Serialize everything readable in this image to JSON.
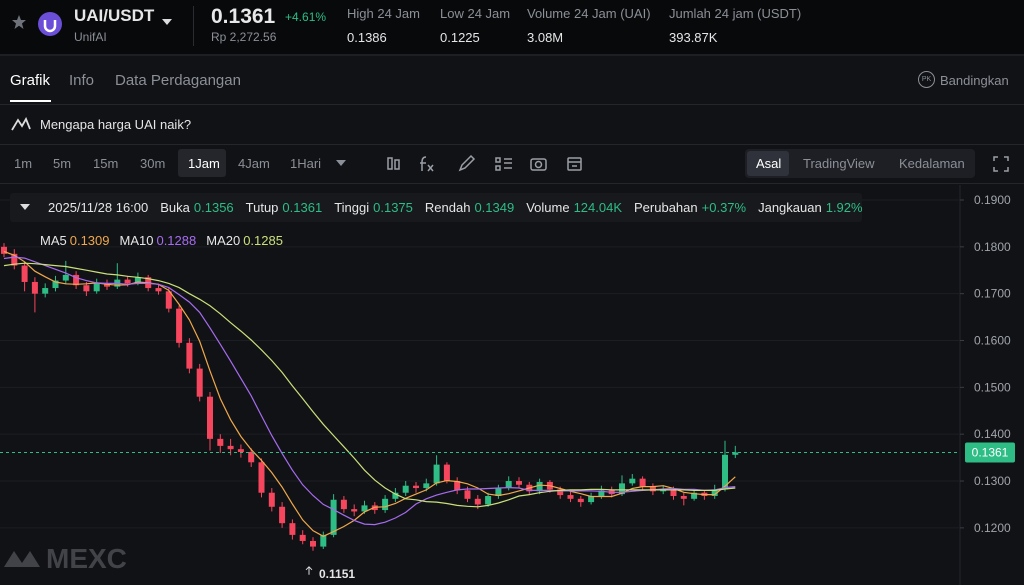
{
  "header": {
    "pair": "UAI/USDT",
    "name": "UnifAI",
    "price": "0.1361",
    "change": "+4.61%",
    "fiat": "Rp 2,272.56",
    "stats": [
      {
        "label": "High 24 Jam",
        "value": "0.1386"
      },
      {
        "label": "Low 24 Jam",
        "value": "0.1225"
      },
      {
        "label": "Volume 24 Jam (UAI)",
        "value": "3.08M"
      },
      {
        "label": "Jumlah 24 jam (USDT)",
        "value": "393.87K"
      }
    ]
  },
  "tabs": [
    "Grafik",
    "Info",
    "Data Perdagangan"
  ],
  "compare_badge": "PK",
  "compare": "Bandingkan",
  "banner": "Mengapa harga UAI naik?",
  "intervals": [
    "1m",
    "5m",
    "15m",
    "30m",
    "1Jam",
    "4Jam",
    "1Hari"
  ],
  "views": [
    "Asal",
    "TradingView",
    "Kedalaman"
  ],
  "info_bar": {
    "date": "2025/11/28 16:00",
    "open_label": "Buka",
    "close_label": "Tutup",
    "high_label": "Tinggi",
    "low_label": "Rendah",
    "volume_label": "Volume",
    "volume": "124.04K",
    "change_label": "Perubahan",
    "change": "+0.37%",
    "range_label": "Jangkauan",
    "range": "1.92%"
  },
  "watermark": "MEXC",
  "chart_data": {
    "type": "candlestick",
    "up_color": "#2dbd85",
    "down_color": "#f6465d",
    "grid": true,
    "ylim": [
      0.1078,
      0.1932
    ],
    "yticks": [
      {
        "value": 0.12,
        "label": "0.1200"
      },
      {
        "value": 0.13,
        "label": "0.1300"
      },
      {
        "value": 0.14,
        "label": "0.1400"
      },
      {
        "value": 0.15,
        "label": "0.1500"
      },
      {
        "value": 0.16,
        "label": "0.1600"
      },
      {
        "value": 0.17,
        "label": "0.1700"
      },
      {
        "value": 0.18,
        "label": "0.1800"
      },
      {
        "value": 0.19,
        "label": "0.1900"
      }
    ],
    "open": [
      0.18,
      0.1785,
      0.176,
      0.1725,
      0.17,
      0.1712,
      0.1728,
      0.174,
      0.1718,
      0.1705,
      0.1722,
      0.1715,
      0.173,
      0.1722,
      0.1735,
      0.1712,
      0.1705,
      0.1668,
      0.1595,
      0.154,
      0.148,
      0.139,
      0.1375,
      0.1368,
      0.1362,
      0.134,
      0.1275,
      0.1245,
      0.121,
      0.1185,
      0.1172,
      0.116,
      0.1185,
      0.126,
      0.124,
      0.1235,
      0.1248,
      0.1238,
      0.1262,
      0.1275,
      0.129,
      0.1285,
      0.1295,
      0.1335,
      0.13,
      0.128,
      0.1262,
      0.125,
      0.1268,
      0.1285,
      0.13,
      0.1292,
      0.1278,
      0.1298,
      0.1282,
      0.127,
      0.1262,
      0.1255,
      0.1268,
      0.128,
      0.1272,
      0.1295,
      0.1305,
      0.1288,
      0.1278,
      0.1282,
      0.1268,
      0.1262,
      0.1275,
      0.1268,
      0.1282,
      0.1356
    ],
    "high": [
      0.1808,
      0.1795,
      0.1768,
      0.1735,
      0.1722,
      0.1738,
      0.177,
      0.1748,
      0.1725,
      0.1732,
      0.173,
      0.1765,
      0.1738,
      0.1745,
      0.174,
      0.172,
      0.1712,
      0.1675,
      0.1605,
      0.155,
      0.149,
      0.14,
      0.139,
      0.1378,
      0.137,
      0.1348,
      0.1285,
      0.1255,
      0.1218,
      0.1195,
      0.118,
      0.1192,
      0.1272,
      0.1268,
      0.125,
      0.1258,
      0.1255,
      0.127,
      0.1285,
      0.13,
      0.1298,
      0.1305,
      0.1355,
      0.134,
      0.1308,
      0.1288,
      0.127,
      0.1275,
      0.1292,
      0.131,
      0.1308,
      0.1298,
      0.1305,
      0.1302,
      0.1288,
      0.1278,
      0.1268,
      0.1275,
      0.129,
      0.1288,
      0.1312,
      0.1315,
      0.131,
      0.1295,
      0.129,
      0.1288,
      0.1275,
      0.1282,
      0.128,
      0.1292,
      0.1386,
      0.1375
    ],
    "low": [
      0.1778,
      0.1752,
      0.1705,
      0.166,
      0.1692,
      0.1705,
      0.172,
      0.171,
      0.1695,
      0.17,
      0.1708,
      0.171,
      0.1715,
      0.1718,
      0.1705,
      0.1698,
      0.166,
      0.1585,
      0.153,
      0.147,
      0.1365,
      0.136,
      0.1355,
      0.135,
      0.133,
      0.1265,
      0.1235,
      0.12,
      0.1175,
      0.1165,
      0.1151,
      0.1155,
      0.118,
      0.1232,
      0.1225,
      0.123,
      0.123,
      0.1232,
      0.1255,
      0.1268,
      0.1275,
      0.1278,
      0.129,
      0.1295,
      0.1272,
      0.1255,
      0.124,
      0.1245,
      0.1262,
      0.128,
      0.1285,
      0.127,
      0.1272,
      0.1275,
      0.1262,
      0.1255,
      0.1245,
      0.125,
      0.1262,
      0.1265,
      0.1268,
      0.129,
      0.1282,
      0.127,
      0.1272,
      0.126,
      0.1248,
      0.1258,
      0.126,
      0.1262,
      0.1278,
      0.1349
    ],
    "close": [
      0.1785,
      0.176,
      0.1725,
      0.17,
      0.1712,
      0.1728,
      0.174,
      0.1718,
      0.1705,
      0.1722,
      0.1715,
      0.173,
      0.1722,
      0.1735,
      0.1712,
      0.1705,
      0.1668,
      0.1595,
      0.154,
      0.148,
      0.139,
      0.1375,
      0.1368,
      0.1362,
      0.134,
      0.1275,
      0.1245,
      0.121,
      0.1185,
      0.1172,
      0.116,
      0.1185,
      0.126,
      0.124,
      0.1235,
      0.1248,
      0.1238,
      0.1262,
      0.1275,
      0.129,
      0.1285,
      0.1295,
      0.1335,
      0.13,
      0.128,
      0.1262,
      0.125,
      0.1268,
      0.1285,
      0.13,
      0.1292,
      0.1278,
      0.1298,
      0.1282,
      0.127,
      0.1262,
      0.1255,
      0.1268,
      0.128,
      0.1272,
      0.1295,
      0.1305,
      0.1288,
      0.1278,
      0.1282,
      0.1268,
      0.1262,
      0.1275,
      0.1268,
      0.1282,
      0.1356,
      0.1361
    ],
    "series": [
      {
        "name": "MA5",
        "color": "#f0a84a",
        "values": [
          0.179,
          0.1782,
          0.1768,
          0.1748,
          0.1736,
          0.1725,
          0.1721,
          0.172,
          0.1721,
          0.1723,
          0.172,
          0.1718,
          0.1719,
          0.1725,
          0.1723,
          0.172,
          0.1707,
          0.1677,
          0.1644,
          0.1598,
          0.1535,
          0.1476,
          0.1431,
          0.1395,
          0.1367,
          0.1344,
          0.1318,
          0.1287,
          0.1251,
          0.1217,
          0.1194,
          0.1182,
          0.1192,
          0.1203,
          0.1216,
          0.1234,
          0.1244,
          0.1245,
          0.1252,
          0.1263,
          0.1272,
          0.1281,
          0.1296,
          0.1301,
          0.1299,
          0.1294,
          0.1285,
          0.1272,
          0.1269,
          0.1273,
          0.1279,
          0.1285,
          0.1291,
          0.129,
          0.1284,
          0.1278,
          0.1273,
          0.1267,
          0.1267,
          0.1267,
          0.1274,
          0.1284,
          0.1288,
          0.1288,
          0.129,
          0.1284,
          0.1276,
          0.1273,
          0.1271,
          0.1271,
          0.1289,
          0.1309
        ]
      },
      {
        "name": "MA10",
        "color": "#a66cf0",
        "values": [
          0.1775,
          0.1778,
          0.1776,
          0.1768,
          0.176,
          0.1752,
          0.1744,
          0.1734,
          0.1728,
          0.1723,
          0.1722,
          0.1722,
          0.172,
          0.1722,
          0.1722,
          0.172,
          0.1713,
          0.1698,
          0.1682,
          0.166,
          0.1627,
          0.1592,
          0.1556,
          0.1519,
          0.1482,
          0.1439,
          0.1397,
          0.1359,
          0.1323,
          0.1292,
          0.1269,
          0.125,
          0.1239,
          0.1227,
          0.1216,
          0.1208,
          0.1207,
          0.1212,
          0.1221,
          0.1233,
          0.1251,
          0.1262,
          0.127,
          0.1276,
          0.1281,
          0.1283,
          0.1283,
          0.1284,
          0.1285,
          0.1286,
          0.1285,
          0.128,
          0.128,
          0.128,
          0.1279,
          0.1279,
          0.1279,
          0.1279,
          0.1278,
          0.1276,
          0.1276,
          0.1278,
          0.128,
          0.1281,
          0.1283,
          0.1284,
          0.1282,
          0.1282,
          0.128,
          0.1281,
          0.1286,
          0.1288
        ]
      },
      {
        "name": "MA20",
        "color": "#c9e07a",
        "values": [
          0.176,
          0.1763,
          0.1765,
          0.1764,
          0.1762,
          0.176,
          0.1758,
          0.1754,
          0.175,
          0.1746,
          0.1742,
          0.174,
          0.1737,
          0.1735,
          0.1732,
          0.1728,
          0.1722,
          0.1713,
          0.17,
          0.1688,
          0.1674,
          0.1657,
          0.1638,
          0.162,
          0.1601,
          0.158,
          0.1557,
          0.1532,
          0.1503,
          0.1476,
          0.1448,
          0.1421,
          0.1397,
          0.1373,
          0.1349,
          0.1323,
          0.1302,
          0.1285,
          0.1272,
          0.1262,
          0.126,
          0.1256,
          0.1255,
          0.1252,
          0.1248,
          0.1246,
          0.1245,
          0.1248,
          0.1253,
          0.126,
          0.1268,
          0.1271,
          0.1275,
          0.1278,
          0.128,
          0.1281,
          0.1281,
          0.1282,
          0.1282,
          0.1281,
          0.1281,
          0.1281,
          0.1281,
          0.1281,
          0.1281,
          0.1281,
          0.1281,
          0.128,
          0.128,
          0.128,
          0.1283,
          0.1285
        ]
      }
    ]
  }
}
